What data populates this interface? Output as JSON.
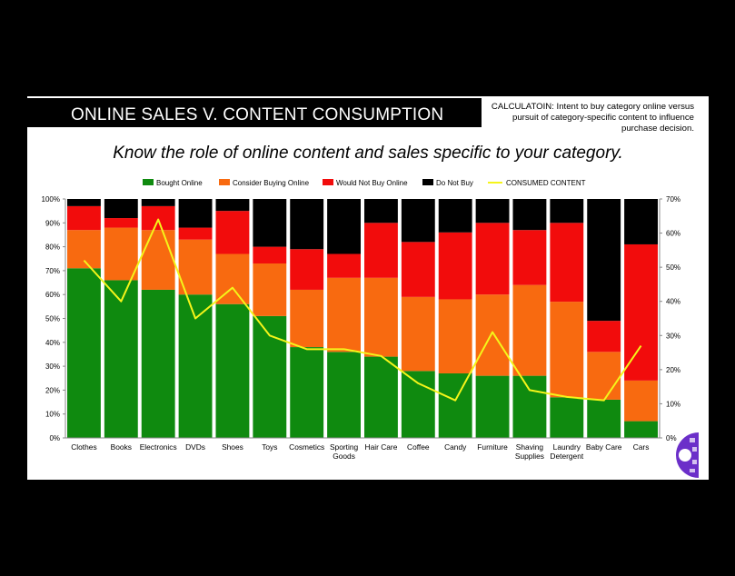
{
  "title": "ONLINE SALES V. CONTENT CONSUMPTION",
  "calc_note": "CALCULATOIN:  Intent to buy category online versus pursuit of category-specific content to influence purchase decision.",
  "subtitle": "Know the role of online content and sales specific to your category.",
  "colors": {
    "bought": "#0f8a0f",
    "consider": "#f86a10",
    "would_not": "#f20c0c",
    "do_not": "#000000",
    "consumed": "#f5f51a"
  },
  "chart_data": {
    "type": "bar",
    "stacked": true,
    "categories": [
      "Clothes",
      "Books",
      "Electronics",
      "DVDs",
      "Shoes",
      "Toys",
      "Cosmetics",
      "Sporting Goods",
      "Hair Care",
      "Coffee",
      "Candy",
      "Furniture",
      "Shaving Supplies",
      "Laundry Detergent",
      "Baby Care",
      "Cars"
    ],
    "series": [
      {
        "name": "Bought Online",
        "axis": "left",
        "values": [
          71,
          66,
          62,
          60,
          56,
          51,
          38,
          36,
          34,
          28,
          27,
          26,
          26,
          17,
          16,
          7
        ]
      },
      {
        "name": "Consider Buying Online",
        "axis": "left",
        "values": [
          16,
          22,
          25,
          23,
          21,
          22,
          24,
          31,
          33,
          31,
          31,
          34,
          38,
          40,
          20,
          17
        ]
      },
      {
        "name": "Would Not Buy Online",
        "axis": "left",
        "values": [
          10,
          4,
          10,
          5,
          18,
          7,
          17,
          10,
          23,
          23,
          28,
          30,
          23,
          33,
          13,
          57
        ]
      },
      {
        "name": "Do Not Buy",
        "axis": "left",
        "values": [
          3,
          8,
          3,
          12,
          5,
          20,
          21,
          23,
          10,
          18,
          14,
          10,
          13,
          10,
          51,
          19
        ]
      },
      {
        "name": "CONSUMED CONTENT",
        "type": "line",
        "axis": "right",
        "values": [
          52,
          40,
          64,
          35,
          44,
          30,
          26,
          26,
          24,
          16,
          11,
          31,
          14,
          12,
          11,
          27
        ]
      }
    ],
    "y_left": {
      "ticks": [
        "0%",
        "10%",
        "20%",
        "30%",
        "40%",
        "50%",
        "60%",
        "70%",
        "80%",
        "90%",
        "100%"
      ],
      "lim": [
        0,
        100
      ]
    },
    "y_right": {
      "ticks": [
        "0%",
        "10%",
        "20%",
        "30%",
        "40%",
        "50%",
        "60%",
        "70%"
      ],
      "lim": [
        0,
        70
      ]
    },
    "legend": "top",
    "grid": false
  }
}
